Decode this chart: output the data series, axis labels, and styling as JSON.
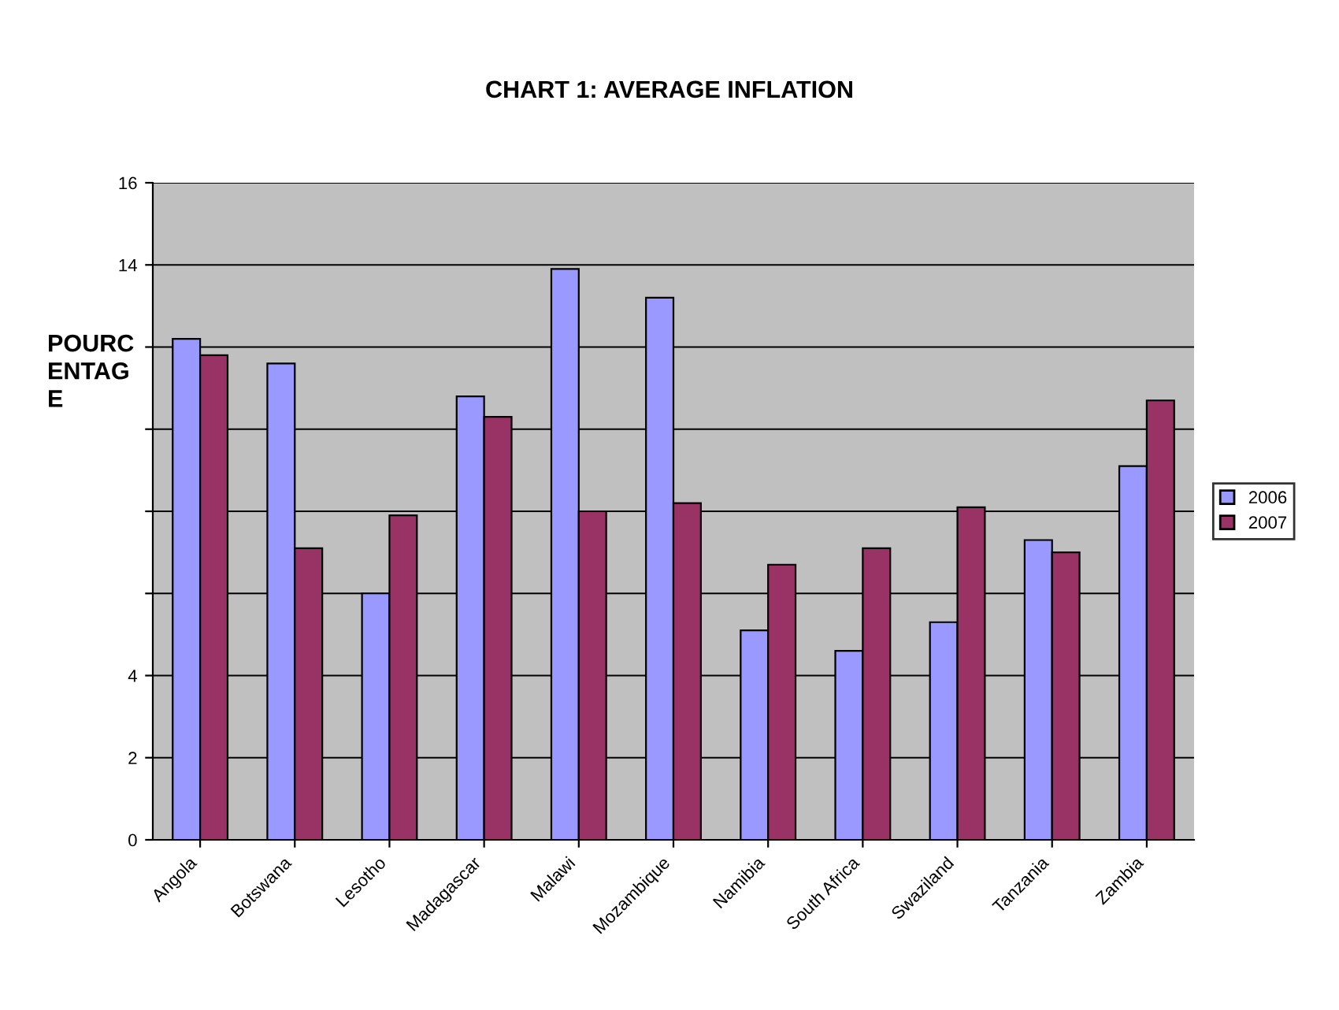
{
  "chart_data": {
    "type": "bar",
    "title": "CHART 1: AVERAGE INFLATION",
    "ylabel": "POURC\nENTAG\nE",
    "categories": [
      "Angola",
      "Botswana",
      "Lesotho",
      "Madagascar",
      "Malawi",
      "Mozambique",
      "Namibia",
      "South Africa",
      "Swaziland",
      "Tanzania",
      "Zambia"
    ],
    "series": [
      {
        "name": "2006",
        "color": "#9999ff",
        "values": [
          12.2,
          11.6,
          6.0,
          10.8,
          13.9,
          13.2,
          5.1,
          4.6,
          5.3,
          7.3,
          9.1
        ]
      },
      {
        "name": "2007",
        "color": "#993366",
        "values": [
          11.8,
          7.1,
          7.9,
          10.3,
          8.0,
          8.2,
          6.7,
          7.1,
          8.1,
          7.0,
          10.7
        ]
      }
    ],
    "ylim": [
      0,
      16
    ],
    "yticks": [
      0,
      2,
      4,
      {
        "value": 6,
        "label": null
      },
      {
        "value": 8,
        "label": null
      },
      {
        "value": 10,
        "label": null
      },
      {
        "value": 12,
        "label": null
      },
      14,
      16
    ],
    "grid": "y",
    "legend": "right"
  }
}
